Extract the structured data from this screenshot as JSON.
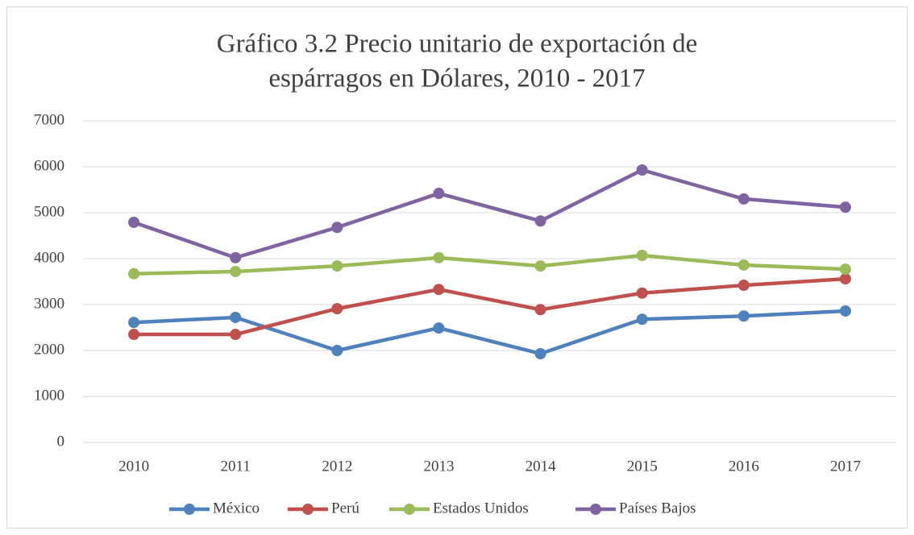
{
  "chart_data": {
    "type": "line",
    "title": [
      "Gráfico 3.2 Precio unitario de exportación de",
      "espárragos en Dólares, 2010 - 2017"
    ],
    "categories": [
      "2010",
      "2011",
      "2012",
      "2013",
      "2014",
      "2015",
      "2016",
      "2017"
    ],
    "series": [
      {
        "name": "México",
        "color": "#4f81bd",
        "values": [
          2610,
          2720,
          2000,
          2490,
          1930,
          2680,
          2750,
          2860
        ]
      },
      {
        "name": "Perú",
        "color": "#c0504d",
        "values": [
          2350,
          2350,
          2910,
          3330,
          2890,
          3250,
          3420,
          3560
        ]
      },
      {
        "name": "Estados Unidos",
        "color": "#9bbb59",
        "values": [
          3670,
          3720,
          3840,
          4020,
          3840,
          4070,
          3860,
          3770
        ]
      },
      {
        "name": "Países Bajos",
        "color": "#8064a2",
        "values": [
          4790,
          4020,
          4680,
          5420,
          4820,
          5930,
          5300,
          5120
        ]
      }
    ],
    "ylim": [
      0,
      7000
    ],
    "yticks": [
      0,
      1000,
      2000,
      3000,
      4000,
      5000,
      6000,
      7000
    ],
    "grid": true,
    "legend": "bottom"
  }
}
